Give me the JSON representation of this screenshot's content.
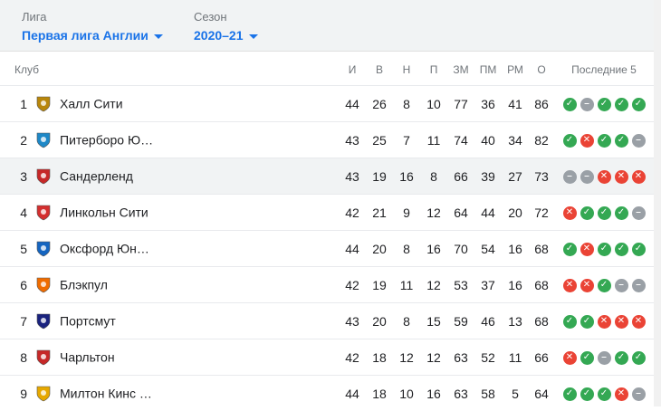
{
  "filters": {
    "league": {
      "label": "Лига",
      "value": "Первая лига Англии"
    },
    "season": {
      "label": "Сезон",
      "value": "2020–21"
    }
  },
  "table": {
    "columns": {
      "club": "Клуб",
      "played": "И",
      "won": "В",
      "drawn": "Н",
      "lost": "П",
      "gf": "ЗМ",
      "ga": "ПМ",
      "gd": "РМ",
      "points": "О",
      "last5": "Последние 5"
    },
    "rows": [
      {
        "pos": "1",
        "team": "Халл Сити",
        "logo": "hull-city-logo",
        "played": "44",
        "won": "26",
        "drawn": "8",
        "lost": "10",
        "gf": "77",
        "ga": "36",
        "gd": "41",
        "points": "86",
        "form": [
          "w",
          "d",
          "w",
          "w",
          "w"
        ]
      },
      {
        "pos": "2",
        "team": "Питерборо Ю…",
        "logo": "peterborough-logo",
        "played": "43",
        "won": "25",
        "drawn": "7",
        "lost": "11",
        "gf": "74",
        "ga": "40",
        "gd": "34",
        "points": "82",
        "form": [
          "w",
          "l",
          "w",
          "w",
          "d"
        ]
      },
      {
        "pos": "3",
        "team": "Сандерленд",
        "logo": "sunderland-logo",
        "played": "43",
        "won": "19",
        "drawn": "16",
        "lost": "8",
        "gf": "66",
        "ga": "39",
        "gd": "27",
        "points": "73",
        "form": [
          "d",
          "d",
          "l",
          "l",
          "l"
        ]
      },
      {
        "pos": "4",
        "team": "Линкольн Сити",
        "logo": "lincoln-city-logo",
        "played": "42",
        "won": "21",
        "drawn": "9",
        "lost": "12",
        "gf": "64",
        "ga": "44",
        "gd": "20",
        "points": "72",
        "form": [
          "l",
          "w",
          "w",
          "w",
          "d"
        ]
      },
      {
        "pos": "5",
        "team": "Оксфорд Юн…",
        "logo": "oxford-united-logo",
        "played": "44",
        "won": "20",
        "drawn": "8",
        "lost": "16",
        "gf": "70",
        "ga": "54",
        "gd": "16",
        "points": "68",
        "form": [
          "w",
          "l",
          "w",
          "w",
          "w"
        ]
      },
      {
        "pos": "6",
        "team": "Блэкпул",
        "logo": "blackpool-logo",
        "played": "42",
        "won": "19",
        "drawn": "11",
        "lost": "12",
        "gf": "53",
        "ga": "37",
        "gd": "16",
        "points": "68",
        "form": [
          "l",
          "l",
          "w",
          "d",
          "d"
        ]
      },
      {
        "pos": "7",
        "team": "Портсмут",
        "logo": "portsmouth-logo",
        "played": "43",
        "won": "20",
        "drawn": "8",
        "lost": "15",
        "gf": "59",
        "ga": "46",
        "gd": "13",
        "points": "68",
        "form": [
          "w",
          "w",
          "l",
          "l",
          "l"
        ]
      },
      {
        "pos": "8",
        "team": "Чарльтон",
        "logo": "charlton-logo",
        "played": "42",
        "won": "18",
        "drawn": "12",
        "lost": "12",
        "gf": "63",
        "ga": "52",
        "gd": "11",
        "points": "66",
        "form": [
          "l",
          "w",
          "d",
          "w",
          "w"
        ]
      },
      {
        "pos": "9",
        "team": "Милтон Кинс …",
        "logo": "mk-dons-logo",
        "played": "44",
        "won": "18",
        "drawn": "10",
        "lost": "16",
        "gf": "63",
        "ga": "58",
        "gd": "5",
        "points": "64",
        "form": [
          "w",
          "w",
          "w",
          "l",
          "d"
        ]
      }
    ],
    "highlighted_pos": "3"
  },
  "colors": {
    "accent": "#1a73e8",
    "win": "#34a853",
    "loss": "#ea4335",
    "draw": "#9aa0a6",
    "highlight": "#f1f3f4"
  },
  "form_icons": {
    "w": "check-icon",
    "l": "cross-icon",
    "d": "dash-icon"
  }
}
